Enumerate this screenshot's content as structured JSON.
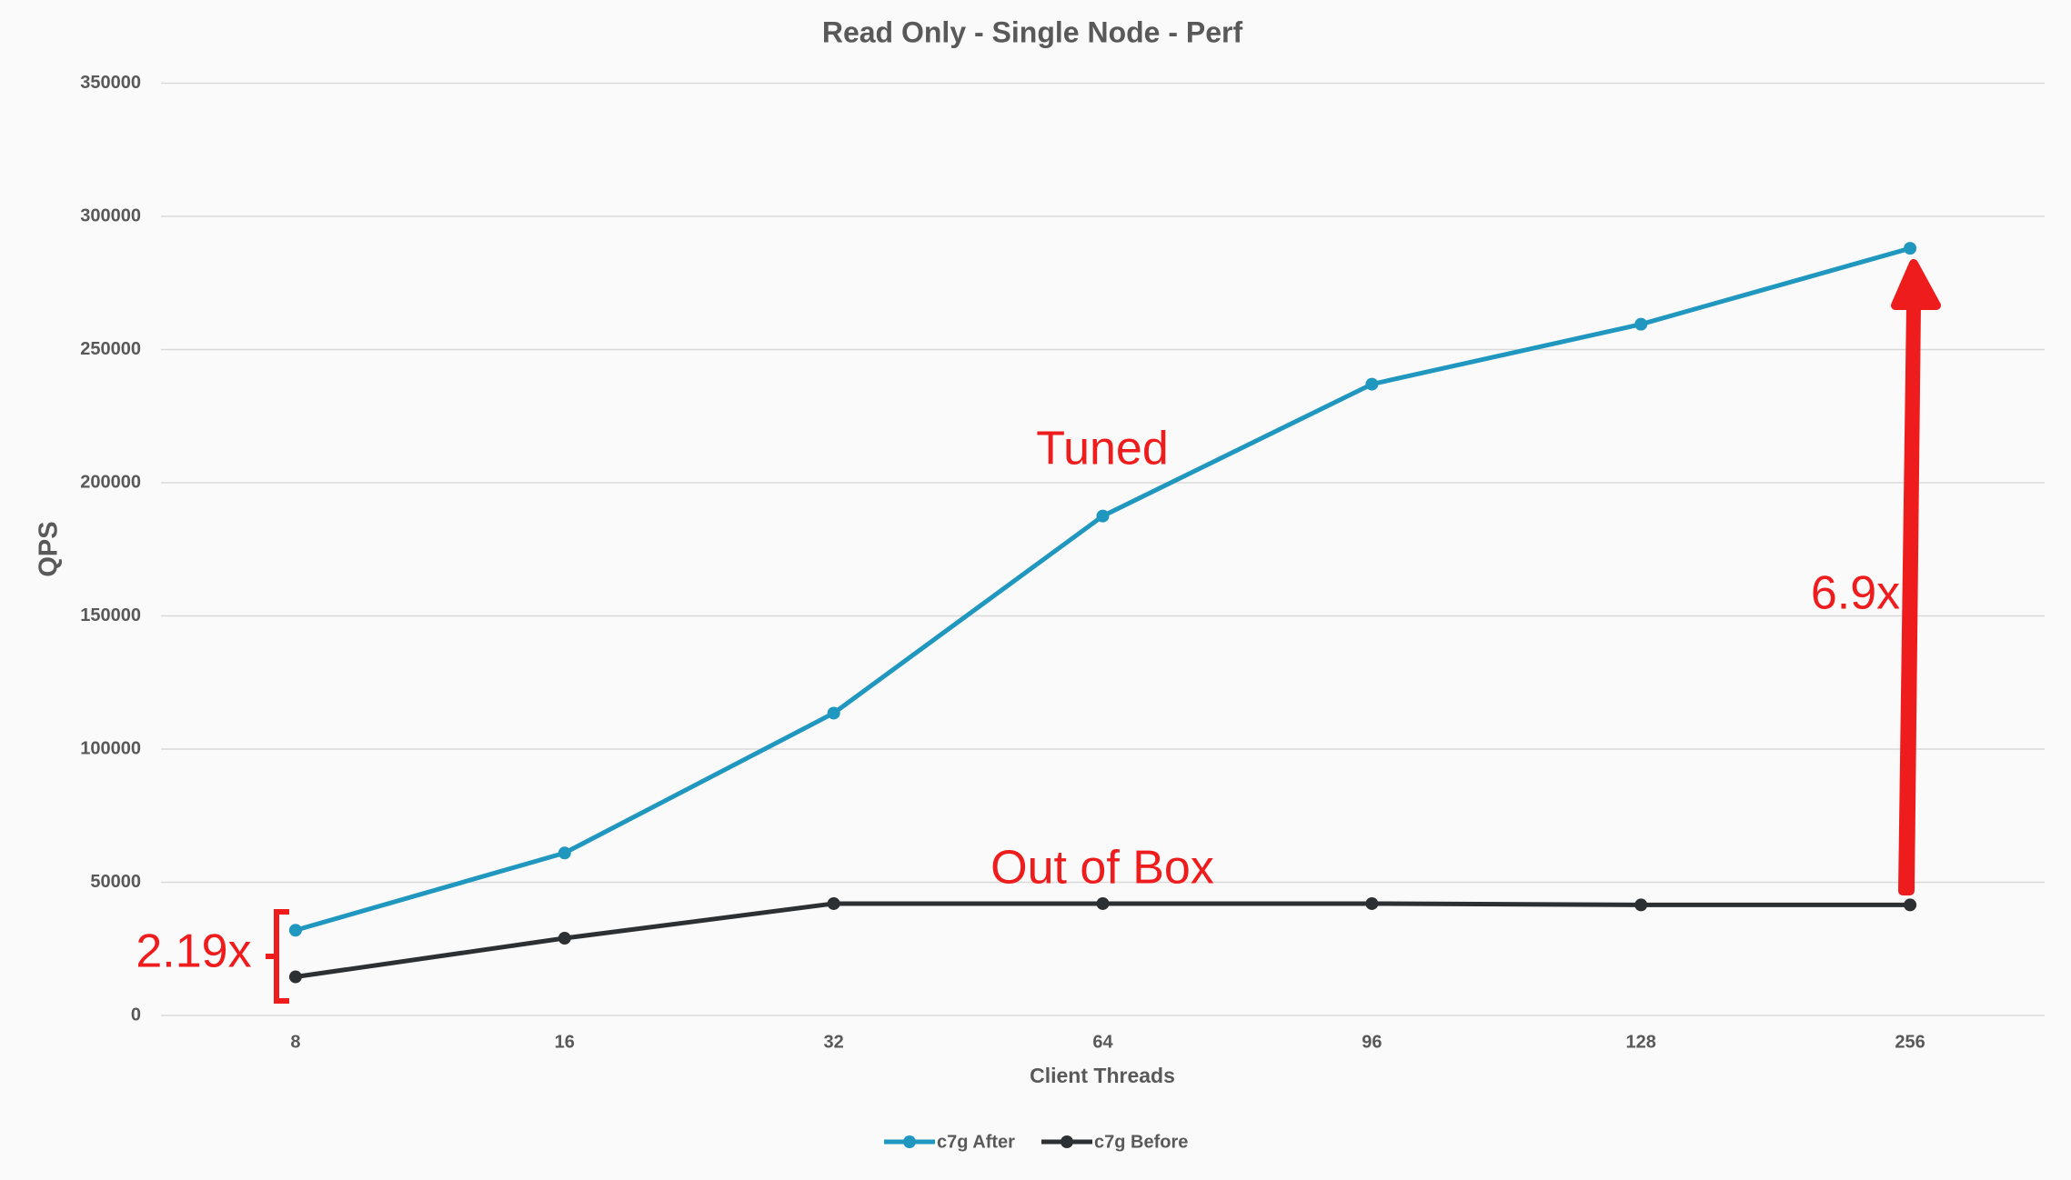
{
  "chart_data": {
    "type": "line",
    "title": "Read Only - Single Node - Perf",
    "x_label": "Client Threads",
    "y_label": "QPS",
    "categories": [
      "8",
      "16",
      "32",
      "64",
      "96",
      "128",
      "256"
    ],
    "series": [
      {
        "name": "c7g After",
        "color": "#1f97bf",
        "values": [
          32000,
          61000,
          113500,
          187500,
          237000,
          259500,
          288000
        ]
      },
      {
        "name": "c7g Before",
        "color": "#2d3033",
        "values": [
          14500,
          29000,
          42000,
          42000,
          42000,
          41500,
          41500
        ]
      }
    ],
    "ylim": [
      0,
      350000
    ],
    "yticks": [
      0,
      50000,
      100000,
      150000,
      200000,
      250000,
      300000,
      350000
    ],
    "grid": true,
    "legend": "bottom",
    "annotations": [
      "Tuned",
      "Out of Box",
      "2.19x",
      "6.9x"
    ],
    "annotation_color": "#ee1c1c"
  }
}
